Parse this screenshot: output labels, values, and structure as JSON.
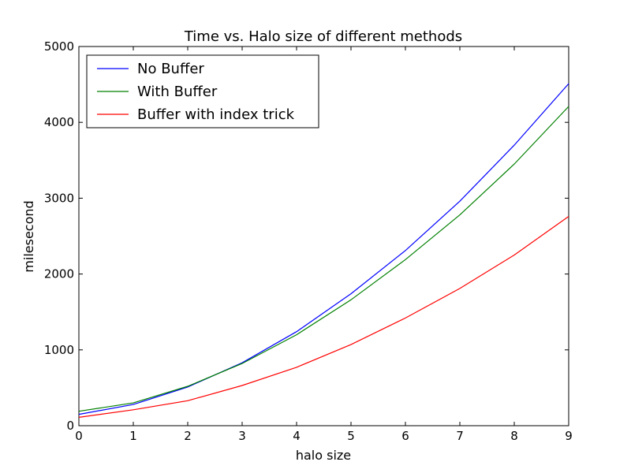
{
  "chart_data": {
    "type": "line",
    "title": "Time vs. Halo size of different methods",
    "xlabel": "halo size",
    "ylabel": "milesecond",
    "x": [
      0,
      1,
      2,
      3,
      4,
      5,
      6,
      7,
      8,
      9
    ],
    "xlim": [
      0,
      9
    ],
    "ylim": [
      0,
      5000
    ],
    "xticks": [
      "0",
      "1",
      "2",
      "3",
      "4",
      "5",
      "6",
      "7",
      "8",
      "9"
    ],
    "yticks": [
      "0",
      "1000",
      "2000",
      "3000",
      "4000",
      "5000"
    ],
    "grid": false,
    "legend_position": "top-left",
    "series": [
      {
        "name": "No Buffer",
        "color": "#0000ff",
        "values": [
          150,
          280,
          510,
          830,
          1240,
          1740,
          2310,
          2960,
          3700,
          4510
        ]
      },
      {
        "name": "With Buffer",
        "color": "#008000",
        "values": [
          190,
          300,
          520,
          820,
          1200,
          1660,
          2190,
          2780,
          3450,
          4210
        ]
      },
      {
        "name": "Buffer with index trick",
        "color": "#ff0000",
        "values": [
          110,
          210,
          330,
          530,
          770,
          1070,
          1420,
          1810,
          2250,
          2760
        ]
      }
    ]
  }
}
